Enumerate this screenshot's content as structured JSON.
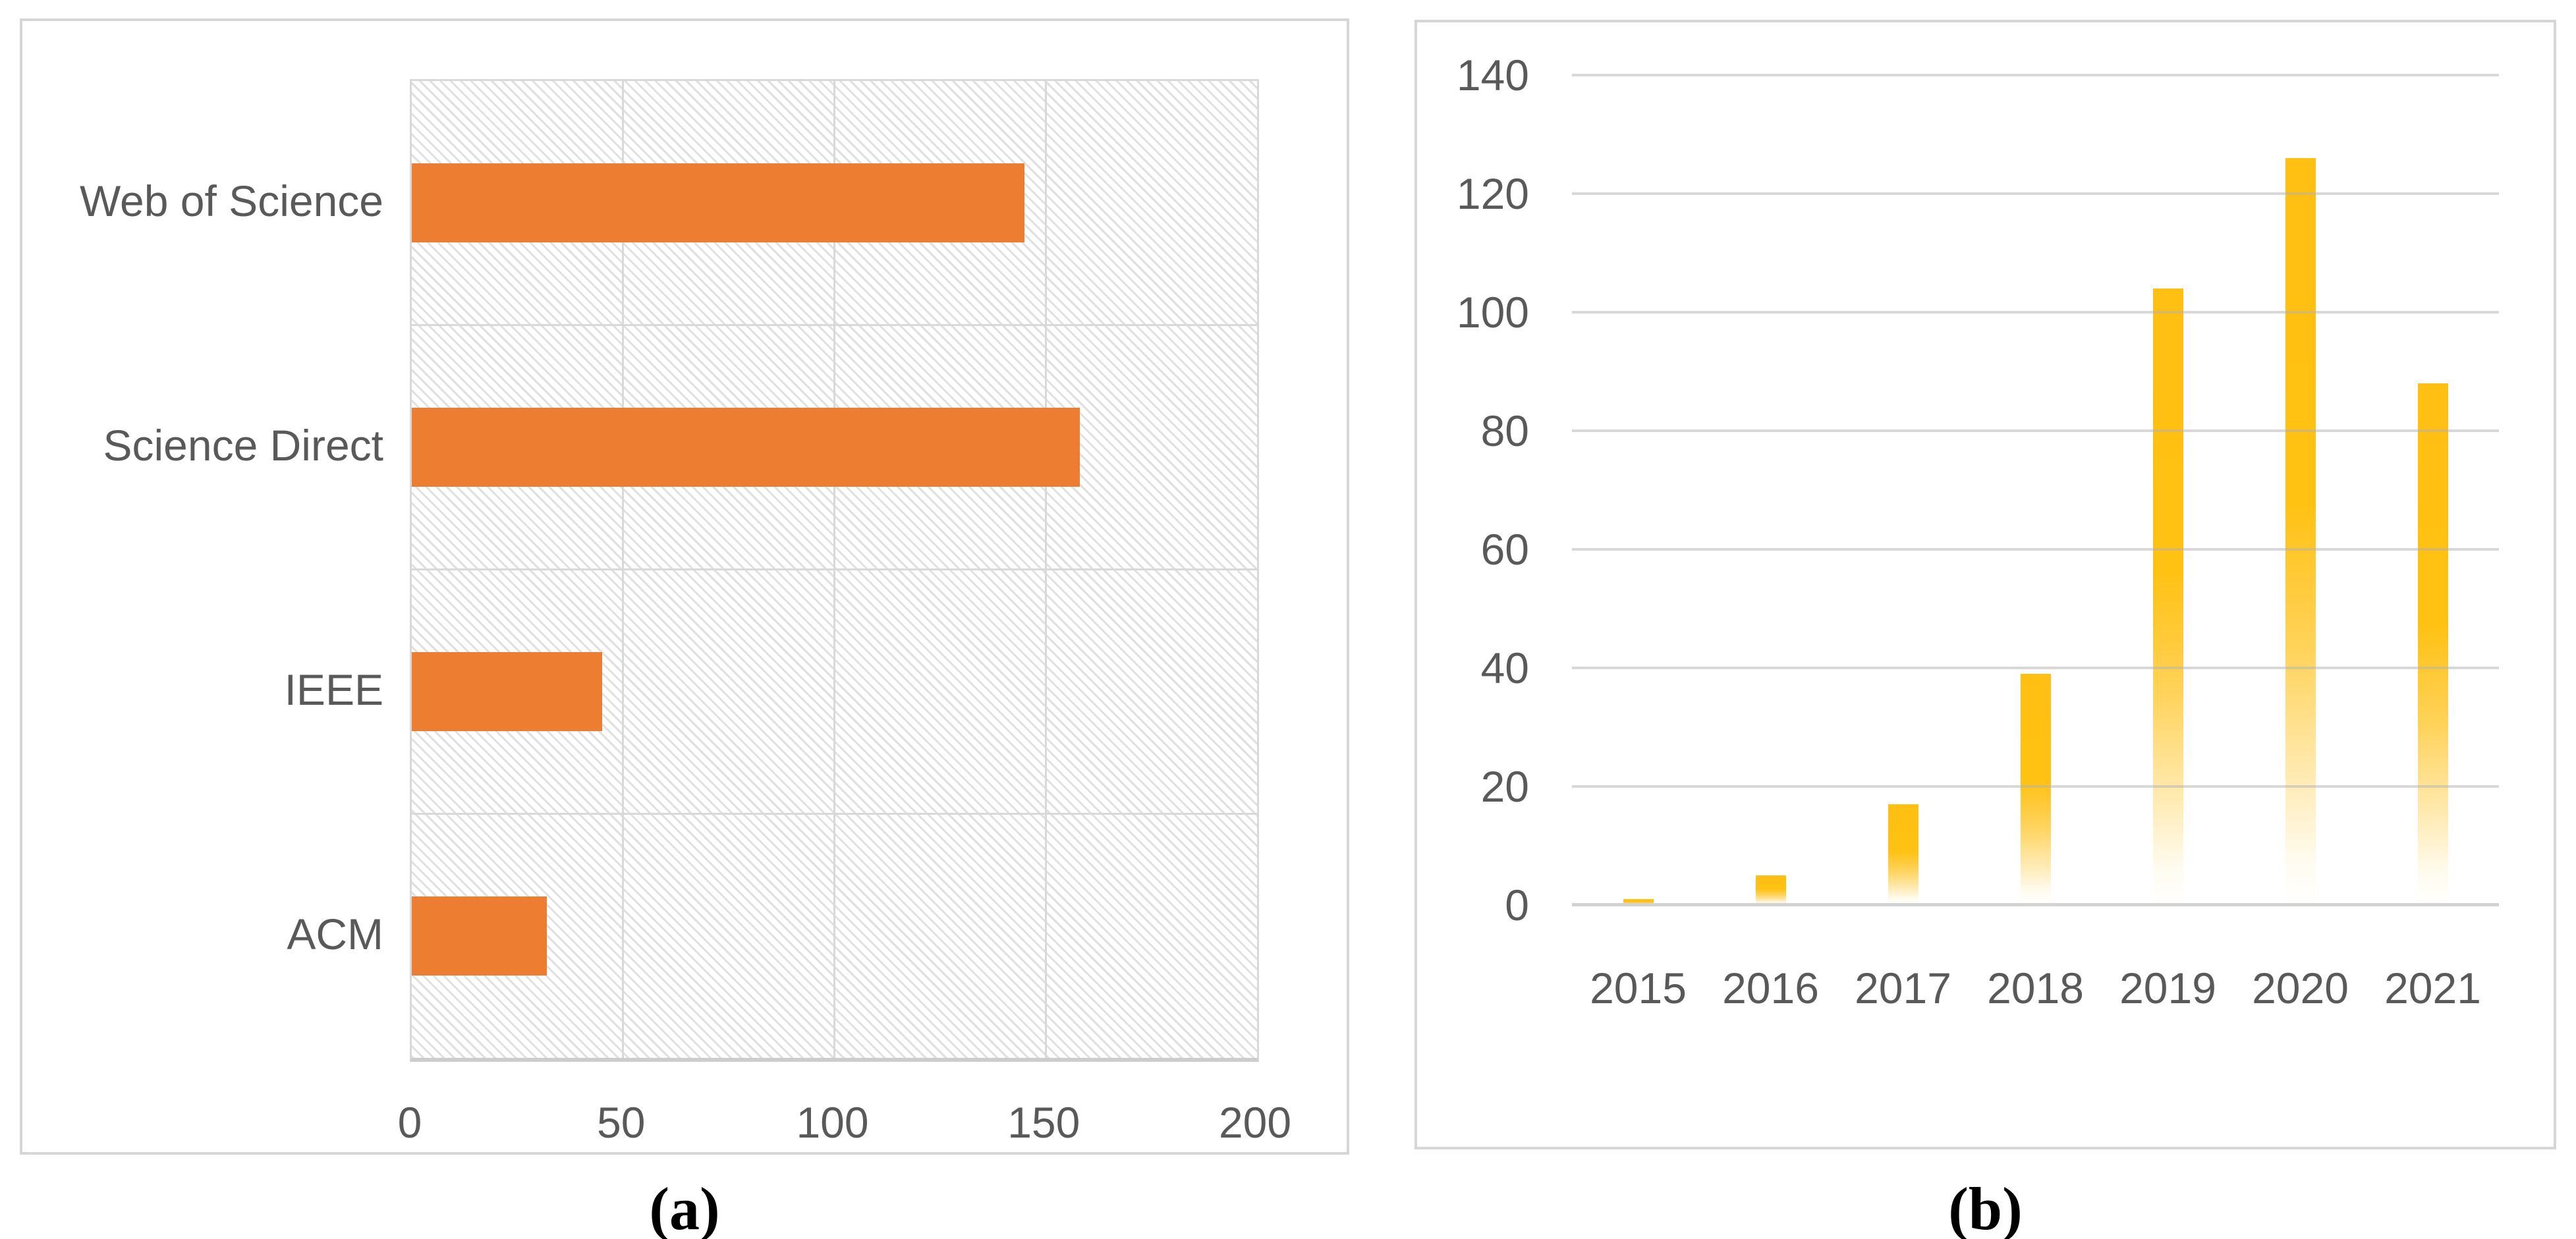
{
  "captions": {
    "a": "(a)",
    "b": "(b)"
  },
  "colors": {
    "panel_border": "#d6d6d6",
    "gridline": "#d9d9d9",
    "axis_text": "#595959",
    "bar_orange": "#ED7D31",
    "bar_gold_top": "#FFC013",
    "bar_gold_fade_bottom": "#FFFFFF",
    "hatch_line": "#e0e0e0"
  },
  "chart_data": [
    {
      "id": "a",
      "type": "bar",
      "orientation": "horizontal",
      "title": "",
      "categories": [
        "Web of Science",
        "Science Direct",
        "IEEE",
        "ACM"
      ],
      "values": [
        145,
        158,
        45,
        32
      ],
      "xlabel": "",
      "ylabel": "",
      "xlim": [
        0,
        200
      ],
      "xticks": [
        0,
        50,
        100,
        150,
        200
      ],
      "grid": true,
      "plot_background": "light diagonal hatch",
      "bar_color": "#ED7D31",
      "legend": "none",
      "caption": "(a)"
    },
    {
      "id": "b",
      "type": "bar",
      "orientation": "vertical",
      "title": "",
      "categories": [
        "2015",
        "2016",
        "2017",
        "2018",
        "2019",
        "2020",
        "2021"
      ],
      "values": [
        1,
        5,
        17,
        39,
        104,
        126,
        88
      ],
      "xlabel": "",
      "ylabel": "",
      "ylim": [
        0,
        140
      ],
      "yticks": [
        0,
        20,
        40,
        60,
        80,
        100,
        120,
        140
      ],
      "grid": true,
      "plot_background": "white",
      "bar_color": "gold gradient fading to white at base",
      "legend": "none",
      "caption": "(b)"
    }
  ]
}
